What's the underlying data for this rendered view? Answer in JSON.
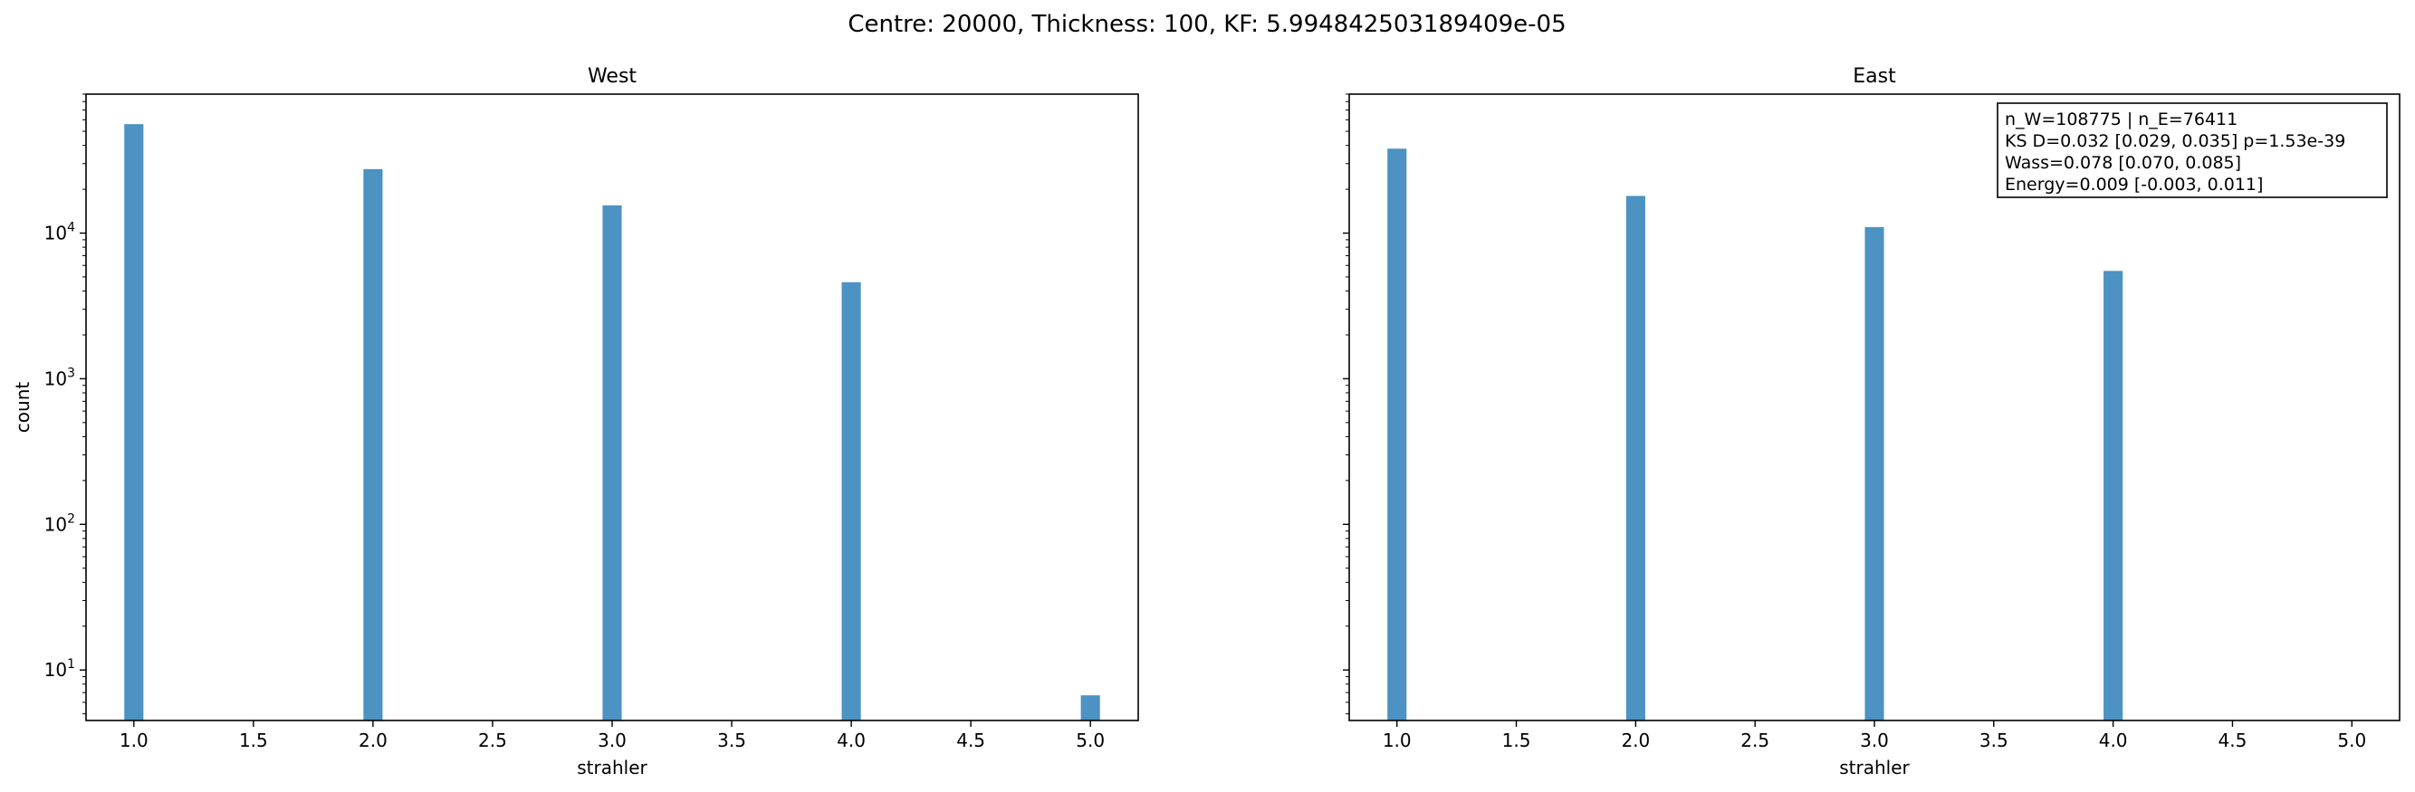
{
  "figure": {
    "suptitle": "Centre: 20000, Thickness: 100, KF: 5.994842503189409e-05"
  },
  "chart_data": [
    {
      "type": "bar",
      "title": "West",
      "xlabel": "strahler",
      "ylabel": "count",
      "yscale": "log",
      "xlim": [
        0.8,
        5.2
      ],
      "ylim": [
        4.5,
        90000
      ],
      "xticks": [
        "1.0",
        "1.5",
        "2.0",
        "2.5",
        "3.0",
        "3.5",
        "4.0",
        "4.5",
        "5.0"
      ],
      "yticks": [
        "10^1",
        "10^2",
        "10^3",
        "10^4"
      ],
      "bar_color": "#1f77b4",
      "bar_width": 0.08,
      "x": [
        1,
        2,
        3,
        4,
        5
      ],
      "values": [
        56000,
        27500,
        15500,
        4600,
        6.7
      ]
    },
    {
      "type": "bar",
      "title": "East",
      "xlabel": "strahler",
      "ylabel": "",
      "yscale": "log",
      "shared_y": true,
      "xlim": [
        0.8,
        5.2
      ],
      "ylim": [
        4.5,
        90000
      ],
      "xticks": [
        "1.0",
        "1.5",
        "2.0",
        "2.5",
        "3.0",
        "3.5",
        "4.0",
        "4.5",
        "5.0"
      ],
      "bar_color": "#1f77b4",
      "bar_width": 0.08,
      "x": [
        1,
        2,
        3,
        4
      ],
      "values": [
        38000,
        18000,
        11000,
        5500
      ],
      "annotation": [
        "n_W=108775 | n_E=76411",
        "KS D=0.032 [0.029, 0.035]  p=1.53e-39",
        "Wass=0.078 [0.070, 0.085]",
        "Energy=0.009 [-0.003, 0.011]"
      ]
    }
  ]
}
